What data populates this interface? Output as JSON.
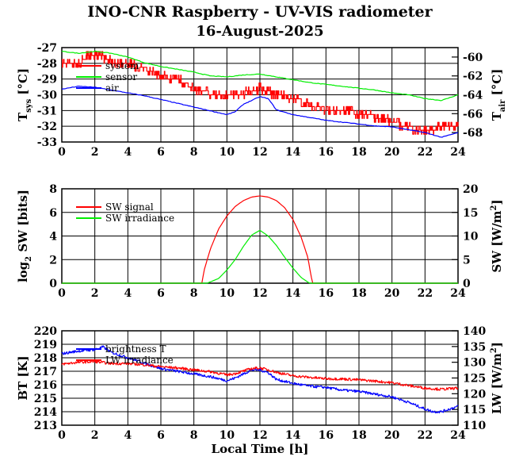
{
  "title": "INO-CNR Raspberry - UV-VIS radiometer",
  "subtitle": "16-August-2025",
  "chart_data": [
    {
      "type": "line",
      "panel": "temperatures",
      "xlabel": "",
      "ylabel_left": "T",
      "ylabel_left_sub": "sys",
      "ylabel_left_unit": "[°C]",
      "ylabel_right": "T",
      "ylabel_right_sub": "air",
      "ylabel_right_unit": "[°C]",
      "xlim": [
        0,
        24
      ],
      "xticks": [
        "0",
        "2",
        "4",
        "6",
        "8",
        "10",
        "12",
        "14",
        "16",
        "18",
        "20",
        "22",
        "24"
      ],
      "ylim_left": [
        -33,
        -27
      ],
      "yticks_left": [
        "-33",
        "-32",
        "-31",
        "-30",
        "-29",
        "-28",
        "-27"
      ],
      "ylim_right": [
        -69,
        -59
      ],
      "yticks_right": [
        "-68",
        "-66",
        "-64",
        "-62",
        "-60"
      ],
      "grid": true,
      "legend": "top-left",
      "series": [
        {
          "name": "system",
          "axis": "left",
          "color": "#ff0000",
          "style": "step-noisy",
          "x": [
            0,
            1,
            1.5,
            2.5,
            3,
            4,
            4.5,
            5,
            5.5,
            6,
            7,
            7.5,
            8,
            8.5,
            9,
            9.5,
            10,
            11,
            12,
            12.5,
            13,
            14,
            15,
            15.5,
            16,
            17,
            18,
            19,
            20,
            20.5,
            21,
            22,
            23,
            24
          ],
          "y": [
            -28.1,
            -28.1,
            -27.6,
            -27.6,
            -27.9,
            -27.9,
            -28.2,
            -28.3,
            -28.6,
            -28.8,
            -29.0,
            -29.3,
            -29.6,
            -29.8,
            -29.9,
            -30.0,
            -30.0,
            -29.9,
            -29.6,
            -29.8,
            -30.0,
            -30.2,
            -30.6,
            -30.8,
            -30.9,
            -31.0,
            -31.2,
            -31.4,
            -31.7,
            -31.9,
            -32.1,
            -32.2,
            -32.1,
            -32.0
          ]
        },
        {
          "name": "sensor",
          "axis": "right",
          "color": "#00ee00",
          "style": "line",
          "x": [
            0,
            1,
            2,
            3,
            4,
            5,
            6,
            7,
            8,
            9,
            10,
            11,
            12,
            13,
            14,
            15,
            16,
            17,
            18,
            19,
            20,
            21,
            22,
            23,
            24
          ],
          "y": [
            -59.4,
            -59.6,
            -59.4,
            -59.6,
            -60.0,
            -60.6,
            -61.0,
            -61.3,
            -61.6,
            -62.0,
            -62.1,
            -61.9,
            -61.8,
            -62.1,
            -62.4,
            -62.7,
            -62.9,
            -63.1,
            -63.3,
            -63.5,
            -63.8,
            -64.0,
            -64.4,
            -64.6,
            -64.0
          ]
        },
        {
          "name": "air",
          "axis": "right",
          "color": "#0000ff",
          "style": "line",
          "x": [
            0,
            1,
            2,
            3,
            4,
            5,
            6,
            7,
            8,
            9,
            10,
            10.5,
            11,
            11.5,
            12,
            12.5,
            13,
            14,
            15,
            16,
            17,
            18,
            19,
            20,
            21,
            22,
            23,
            24
          ],
          "y": [
            -63.4,
            -63.1,
            -63.2,
            -63.5,
            -63.8,
            -64.1,
            -64.5,
            -64.9,
            -65.3,
            -65.7,
            -66.1,
            -65.8,
            -65.0,
            -64.6,
            -64.2,
            -64.4,
            -65.6,
            -66.1,
            -66.4,
            -66.7,
            -66.9,
            -67.1,
            -67.3,
            -67.4,
            -67.7,
            -68.0,
            -68.5,
            -68.0
          ]
        }
      ]
    },
    {
      "type": "line",
      "panel": "shortwave",
      "xlabel": "",
      "ylabel_left": "log",
      "ylabel_left_sub": "2",
      "ylabel_left_unit": "SW [bits]",
      "ylabel_right": "SW [W/m",
      "ylabel_right_sup": "2",
      "ylabel_right_unit": "]",
      "xlim": [
        0,
        24
      ],
      "xticks": [
        "0",
        "2",
        "4",
        "6",
        "8",
        "10",
        "12",
        "14",
        "16",
        "18",
        "20",
        "22",
        "24"
      ],
      "ylim_left": [
        0,
        8
      ],
      "yticks_left": [
        "0",
        "2",
        "4",
        "6",
        "8"
      ],
      "ylim_right": [
        0,
        20
      ],
      "yticks_right": [
        "0",
        "5",
        "10",
        "15",
        "20"
      ],
      "grid": true,
      "legend": "top-left",
      "series": [
        {
          "name": "SW signal",
          "axis": "left",
          "color": "#ff0000",
          "style": "line",
          "x": [
            0,
            8.5,
            8.6,
            9,
            9.5,
            10,
            10.5,
            11,
            11.5,
            12,
            12.5,
            13,
            13.5,
            14,
            14.5,
            14.9,
            15.1,
            15.2,
            24
          ],
          "y": [
            0,
            0,
            1.0,
            2.9,
            4.6,
            5.7,
            6.5,
            7.0,
            7.3,
            7.4,
            7.3,
            7.0,
            6.4,
            5.4,
            3.9,
            2.2,
            0.6,
            0,
            0
          ]
        },
        {
          "name": "SW irradiance",
          "axis": "right",
          "color": "#00ee00",
          "style": "line",
          "x": [
            0,
            8.8,
            9.5,
            10,
            10.5,
            11,
            11.5,
            12,
            12.5,
            13,
            13.5,
            14,
            14.5,
            15,
            24
          ],
          "y": [
            0,
            0,
            1.0,
            2.8,
            5.0,
            7.8,
            10.2,
            11.2,
            10.0,
            8.0,
            5.5,
            3.2,
            1.2,
            0,
            0
          ]
        }
      ]
    },
    {
      "type": "line",
      "panel": "longwave",
      "xlabel": "Local Time [h]",
      "ylabel_left": "BT [K]",
      "ylabel_right": "LW [W/m",
      "ylabel_right_sup": "2",
      "ylabel_right_unit": "]",
      "xlim": [
        0,
        24
      ],
      "xticks": [
        "0",
        "2",
        "4",
        "6",
        "8",
        "10",
        "12",
        "14",
        "16",
        "18",
        "20",
        "22",
        "24"
      ],
      "ylim_left": [
        213,
        220
      ],
      "yticks_left": [
        "213",
        "214",
        "215",
        "216",
        "217",
        "218",
        "219",
        "220"
      ],
      "ylim_right": [
        110,
        140
      ],
      "yticks_right": [
        "110",
        "115",
        "120",
        "125",
        "130",
        "135",
        "140"
      ],
      "grid": true,
      "legend": "top-left",
      "series": [
        {
          "name": "brightness T",
          "axis": "left",
          "color": "#0000ff",
          "style": "noisy",
          "x": [
            0,
            1,
            2,
            2.5,
            3,
            4,
            5,
            6,
            7,
            8,
            9,
            10,
            10.5,
            11,
            11.5,
            12,
            12.5,
            13,
            14,
            15,
            16,
            17,
            18,
            19,
            20,
            21,
            22,
            22.5,
            23,
            24
          ],
          "y": [
            218.3,
            218.5,
            218.6,
            218.8,
            218.4,
            218.0,
            217.6,
            217.2,
            217.0,
            216.8,
            216.6,
            216.3,
            216.5,
            216.8,
            217.1,
            217.1,
            216.9,
            216.4,
            216.1,
            215.9,
            215.8,
            215.6,
            215.5,
            215.3,
            215.1,
            214.7,
            214.2,
            214.0,
            214.0,
            214.4
          ]
        },
        {
          "name": "LW irradiance",
          "axis": "right",
          "color": "#ff0000",
          "style": "noisy",
          "x": [
            0,
            1,
            2,
            3,
            4,
            5,
            6,
            7,
            8,
            9,
            10,
            10.5,
            11,
            11.5,
            12,
            12.5,
            13,
            14,
            15,
            16,
            17,
            18,
            19,
            20,
            21,
            22,
            23,
            24
          ],
          "y": [
            129.4,
            130.0,
            130.2,
            129.6,
            129.6,
            129.2,
            128.6,
            128.2,
            127.6,
            127.0,
            126.0,
            126.4,
            127.2,
            128.0,
            128.2,
            127.6,
            126.8,
            125.7,
            125.2,
            124.8,
            124.7,
            124.4,
            124.0,
            123.5,
            122.6,
            121.8,
            121.4,
            121.8
          ]
        }
      ]
    }
  ]
}
